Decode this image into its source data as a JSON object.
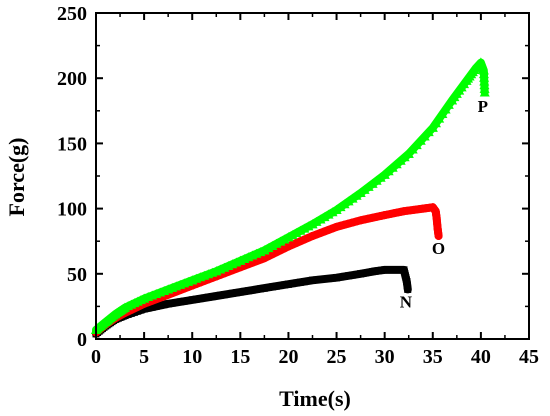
{
  "chart_data": {
    "type": "scatter",
    "xlabel": "Time(s)",
    "ylabel": "Force(g)",
    "xlim": [
      0,
      45
    ],
    "ylim": [
      0,
      250
    ],
    "xticks": [
      0,
      5,
      10,
      15,
      20,
      25,
      30,
      35,
      40,
      45
    ],
    "yticks": [
      0,
      50,
      100,
      150,
      200,
      250
    ],
    "grid": false,
    "series": [
      {
        "name": "N",
        "color": "#000000",
        "marker": "square",
        "x": [
          0,
          1,
          2,
          3,
          5,
          7.5,
          10,
          12.5,
          15,
          17.5,
          20,
          22.5,
          25,
          27.5,
          29,
          30,
          31,
          32,
          32.3,
          32.4
        ],
        "y": [
          4,
          10,
          15,
          18,
          23,
          27,
          30,
          33,
          36,
          39,
          42,
          45,
          47,
          50,
          52,
          53,
          53,
          53,
          44,
          38
        ]
      },
      {
        "name": "O",
        "color": "#ff0000",
        "marker": "circle",
        "x": [
          0,
          1,
          2,
          3,
          5,
          7.5,
          10,
          12.5,
          15,
          17.5,
          20,
          22.5,
          25,
          27.5,
          30,
          32,
          34,
          35,
          35.3,
          35.4,
          35.5,
          35.6
        ],
        "y": [
          5,
          11,
          16,
          20,
          27,
          34,
          41,
          48,
          55,
          62,
          71,
          79,
          86,
          91,
          95,
          98,
          100,
          101,
          98,
          93,
          85,
          79
        ]
      },
      {
        "name": "P",
        "color": "#00ff00",
        "marker": "triangle",
        "x": [
          0,
          1,
          2,
          3,
          5,
          7.5,
          10,
          12.5,
          15,
          17.5,
          20,
          22.5,
          25,
          27.5,
          30,
          32.5,
          35,
          37,
          38.5,
          39.5,
          40,
          40.3,
          40.4
        ],
        "y": [
          7,
          13,
          19,
          24,
          31,
          38,
          45,
          52,
          60,
          68,
          78,
          88,
          99,
          112,
          126,
          142,
          162,
          183,
          198,
          208,
          212,
          206,
          189
        ]
      }
    ],
    "annotations": [
      {
        "text": "N",
        "x": 32.2,
        "y": 24
      },
      {
        "text": "O",
        "x": 35.6,
        "y": 65
      },
      {
        "text": "P",
        "x": 40.2,
        "y": 174
      }
    ]
  }
}
